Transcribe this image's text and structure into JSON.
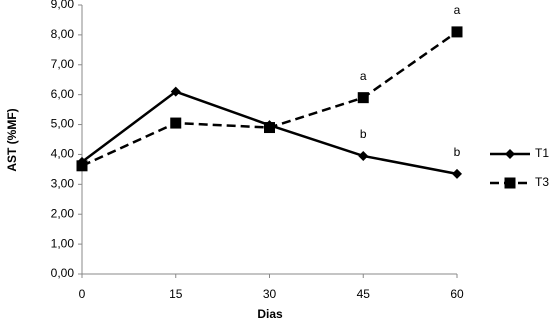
{
  "chart_data": {
    "type": "line",
    "xlabel": "Dias",
    "ylabel": "AST (%MF)",
    "x": [
      0,
      15,
      30,
      45,
      60
    ],
    "series": [
      {
        "name": "T1",
        "color": "#000000",
        "marker": "diamond",
        "dash": "solid",
        "values": [
          3.75,
          6.1,
          4.98,
          3.95,
          3.35
        ]
      },
      {
        "name": "T3",
        "color": "#000000",
        "marker": "square",
        "dash": "dashed",
        "values": [
          3.62,
          5.05,
          4.9,
          5.9,
          8.1
        ]
      }
    ],
    "xlim": [
      0,
      60
    ],
    "xticks": [
      0,
      15,
      30,
      45,
      60
    ],
    "ylim": [
      0,
      9
    ],
    "yticks": [
      {
        "value": 0,
        "label": "0,00"
      },
      {
        "value": 1,
        "label": "1,00"
      },
      {
        "value": 2,
        "label": "2,00"
      },
      {
        "value": 3,
        "label": "3,00"
      },
      {
        "value": 4,
        "label": "4,00"
      },
      {
        "value": 5,
        "label": "5,00"
      },
      {
        "value": 6,
        "label": "6,00"
      },
      {
        "value": 7,
        "label": "7,00"
      },
      {
        "value": 8,
        "label": "8,00"
      },
      {
        "value": 9,
        "label": "9,00"
      }
    ],
    "grid": false,
    "legend": "right",
    "annotations": [
      {
        "text": "a",
        "x": 45,
        "series": "T3"
      },
      {
        "text": "a",
        "x": 60,
        "series": "T3"
      },
      {
        "text": "b",
        "x": 45,
        "series": "T1"
      },
      {
        "text": "b",
        "x": 60,
        "series": "T1"
      }
    ]
  }
}
